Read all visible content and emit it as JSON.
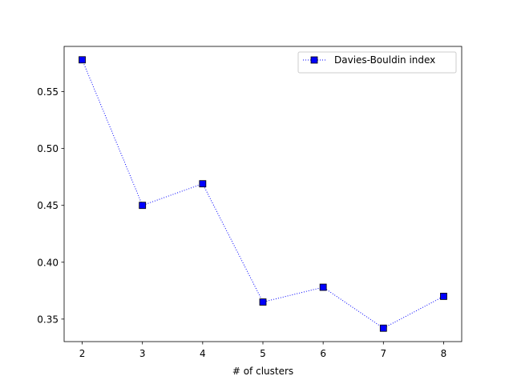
{
  "chart_data": {
    "type": "line",
    "title": "",
    "xlabel": "# of clusters",
    "ylabel": "",
    "x": [
      2,
      3,
      4,
      5,
      6,
      7,
      8
    ],
    "series": [
      {
        "name": "Davies-Bouldin index",
        "values": [
          0.578,
          0.45,
          0.469,
          0.365,
          0.378,
          0.342,
          0.37
        ],
        "color": "#0000ff",
        "marker": "square",
        "line_style": "dotted"
      }
    ],
    "xlim": [
      1.7,
      8.3
    ],
    "ylim": [
      0.3302,
      0.5898
    ],
    "x_ticks": [
      2,
      3,
      4,
      5,
      6,
      7,
      8
    ],
    "y_ticks": [
      0.35,
      0.4,
      0.45,
      0.5,
      0.55
    ],
    "y_tick_labels": [
      "0.35",
      "0.40",
      "0.45",
      "0.50",
      "0.55"
    ],
    "grid": false,
    "legend_position": "top-right"
  }
}
